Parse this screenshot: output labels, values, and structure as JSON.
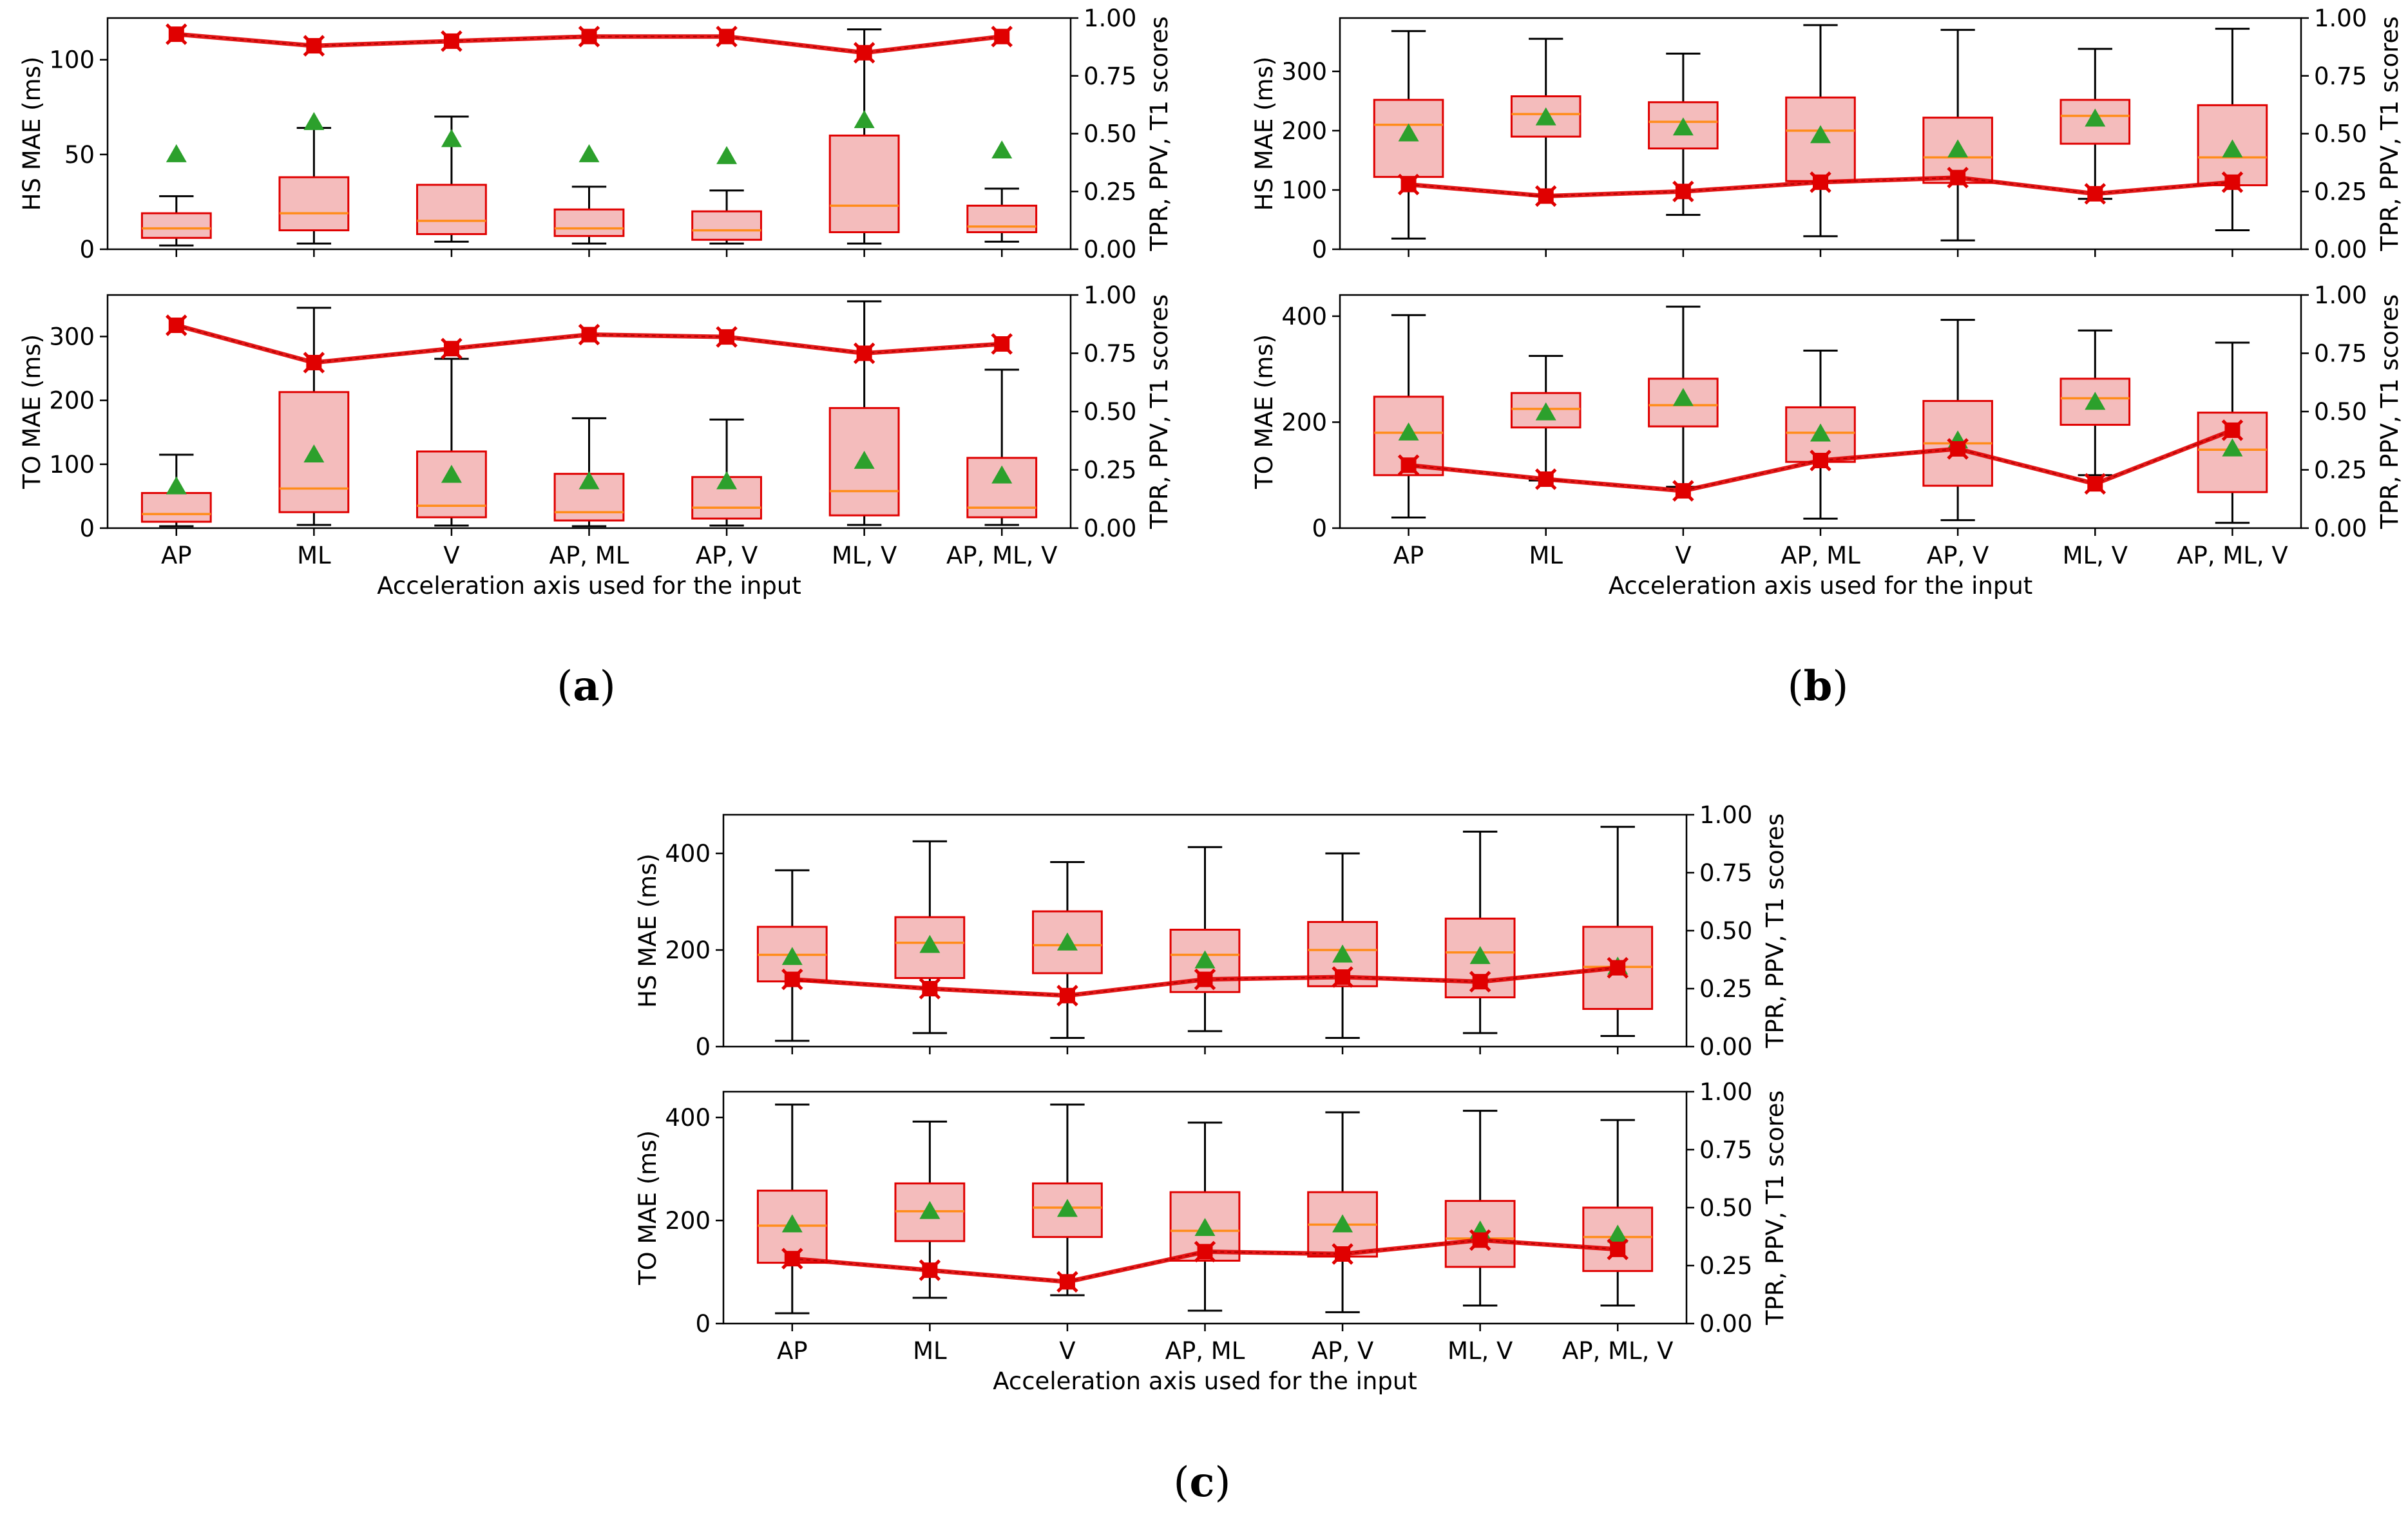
{
  "figure": {
    "panels": [
      {
        "id": "a",
        "label_open": "(",
        "label_letter": "a",
        "label_close": ")"
      },
      {
        "id": "b",
        "label_open": "(",
        "label_letter": "b",
        "label_close": ")"
      },
      {
        "id": "c",
        "label_open": "(",
        "label_letter": "c",
        "label_close": ")"
      }
    ]
  },
  "colors": {
    "box_fill": "#f4bcbc",
    "box_edge": "#e00000",
    "median": "#ff8c1a",
    "mean": "#2ca02c",
    "whisker": "#000000",
    "score_line": "#e00000"
  },
  "chart_data": [
    {
      "panel": "a",
      "row": "top",
      "type": "box",
      "categories": [
        "AP",
        "ML",
        "V",
        "AP, ML",
        "AP, V",
        "ML, V",
        "AP, ML, V"
      ],
      "ylabel": "HS MAE (ms)",
      "ylabel_right": "TPR, PPV, T1 scores",
      "xlabel": "",
      "ylim": [
        0,
        122
      ],
      "yticks": [
        0,
        50,
        100
      ],
      "y2lim": [
        0,
        1
      ],
      "y2ticks": [
        "0.00",
        "0.25",
        "0.50",
        "0.75",
        "1.00"
      ],
      "boxes": [
        {
          "whislo": 2,
          "q1": 6,
          "med": 11,
          "q3": 19,
          "whishi": 28,
          "mean": 50
        },
        {
          "whislo": 3,
          "q1": 10,
          "med": 19,
          "q3": 38,
          "whishi": 64,
          "mean": 67
        },
        {
          "whislo": 4,
          "q1": 8,
          "med": 15,
          "q3": 34,
          "whishi": 70,
          "mean": 58
        },
        {
          "whislo": 3,
          "q1": 7,
          "med": 11,
          "q3": 21,
          "whishi": 33,
          "mean": 50
        },
        {
          "whislo": 3,
          "q1": 5,
          "med": 10,
          "q3": 20,
          "whishi": 31,
          "mean": 49
        },
        {
          "whislo": 3,
          "q1": 9,
          "med": 23,
          "q3": 60,
          "whishi": 116,
          "mean": 68
        },
        {
          "whislo": 4,
          "q1": 9,
          "med": 12,
          "q3": 23,
          "whishi": 32,
          "mean": 52
        }
      ],
      "score": [
        0.93,
        0.88,
        0.9,
        0.92,
        0.92,
        0.85,
        0.92
      ]
    },
    {
      "panel": "a",
      "row": "bottom",
      "type": "box",
      "categories": [
        "AP",
        "ML",
        "V",
        "AP, ML",
        "AP, V",
        "ML, V",
        "AP, ML, V"
      ],
      "ylabel": "TO MAE (ms)",
      "ylabel_right": "TPR, PPV, T1 scores",
      "xlabel": "Acceleration axis used for the input",
      "ylim": [
        0,
        365
      ],
      "yticks": [
        0,
        100,
        200,
        300
      ],
      "y2lim": [
        0,
        1
      ],
      "y2ticks": [
        "0.00",
        "0.25",
        "0.50",
        "0.75",
        "1.00"
      ],
      "boxes": [
        {
          "whislo": 3,
          "q1": 10,
          "med": 22,
          "q3": 55,
          "whishi": 115,
          "mean": 65
        },
        {
          "whislo": 5,
          "q1": 25,
          "med": 62,
          "q3": 213,
          "whishi": 345,
          "mean": 115
        },
        {
          "whislo": 4,
          "q1": 17,
          "med": 35,
          "q3": 120,
          "whishi": 265,
          "mean": 83
        },
        {
          "whislo": 3,
          "q1": 12,
          "med": 25,
          "q3": 85,
          "whishi": 172,
          "mean": 73
        },
        {
          "whislo": 4,
          "q1": 15,
          "med": 32,
          "q3": 80,
          "whishi": 170,
          "mean": 73
        },
        {
          "whislo": 5,
          "q1": 20,
          "med": 58,
          "q3": 188,
          "whishi": 355,
          "mean": 105
        },
        {
          "whislo": 5,
          "q1": 17,
          "med": 32,
          "q3": 110,
          "whishi": 248,
          "mean": 82
        }
      ],
      "score": [
        0.87,
        0.71,
        0.77,
        0.83,
        0.82,
        0.75,
        0.79
      ]
    },
    {
      "panel": "b",
      "row": "top",
      "type": "box",
      "categories": [
        "AP",
        "ML",
        "V",
        "AP, ML",
        "AP, V",
        "ML, V",
        "AP, ML, V"
      ],
      "ylabel": "HS MAE (ms)",
      "ylabel_right": "TPR, PPV, T1 scores",
      "xlabel": "",
      "ylim": [
        0,
        390
      ],
      "yticks": [
        0,
        100,
        200,
        300
      ],
      "y2lim": [
        0,
        1
      ],
      "y2ticks": [
        "0.00",
        "0.25",
        "0.50",
        "0.75",
        "1.00"
      ],
      "boxes": [
        {
          "whislo": 18,
          "q1": 122,
          "med": 210,
          "q3": 252,
          "whishi": 368,
          "mean": 195
        },
        {
          "whislo": 90,
          "q1": 190,
          "med": 228,
          "q3": 258,
          "whishi": 355,
          "mean": 222
        },
        {
          "whislo": 58,
          "q1": 170,
          "med": 215,
          "q3": 248,
          "whishi": 330,
          "mean": 205
        },
        {
          "whislo": 22,
          "q1": 115,
          "med": 200,
          "q3": 256,
          "whishi": 378,
          "mean": 192
        },
        {
          "whislo": 15,
          "q1": 112,
          "med": 155,
          "q3": 222,
          "whishi": 370,
          "mean": 168
        },
        {
          "whislo": 85,
          "q1": 178,
          "med": 225,
          "q3": 252,
          "whishi": 338,
          "mean": 220
        },
        {
          "whislo": 32,
          "q1": 108,
          "med": 155,
          "q3": 243,
          "whishi": 372,
          "mean": 168
        }
      ],
      "score": [
        0.28,
        0.23,
        0.25,
        0.29,
        0.31,
        0.24,
        0.29
      ]
    },
    {
      "panel": "b",
      "row": "bottom",
      "type": "box",
      "categories": [
        "AP",
        "ML",
        "V",
        "AP, ML",
        "AP, V",
        "ML, V",
        "AP, ML, V"
      ],
      "ylabel": "TO MAE (ms)",
      "ylabel_right": "TPR, PPV, T1 scores",
      "xlabel": "Acceleration axis used for the input",
      "ylim": [
        0,
        440
      ],
      "yticks": [
        0,
        200,
        400
      ],
      "y2lim": [
        0,
        1
      ],
      "y2ticks": [
        "0.00",
        "0.25",
        "0.50",
        "0.75",
        "1.00"
      ],
      "boxes": [
        {
          "whislo": 20,
          "q1": 100,
          "med": 180,
          "q3": 248,
          "whishi": 402,
          "mean": 180
        },
        {
          "whislo": 90,
          "q1": 190,
          "med": 225,
          "q3": 255,
          "whishi": 325,
          "mean": 218
        },
        {
          "whislo": 78,
          "q1": 192,
          "med": 232,
          "q3": 282,
          "whishi": 418,
          "mean": 245
        },
        {
          "whislo": 18,
          "q1": 125,
          "med": 180,
          "q3": 228,
          "whishi": 335,
          "mean": 178
        },
        {
          "whislo": 15,
          "q1": 80,
          "med": 160,
          "q3": 240,
          "whishi": 393,
          "mean": 165
        },
        {
          "whislo": 100,
          "q1": 195,
          "med": 245,
          "q3": 282,
          "whishi": 373,
          "mean": 238
        },
        {
          "whislo": 10,
          "q1": 68,
          "med": 148,
          "q3": 218,
          "whishi": 350,
          "mean": 150
        }
      ],
      "score": [
        0.27,
        0.21,
        0.16,
        0.29,
        0.34,
        0.19,
        0.42
      ]
    },
    {
      "panel": "c",
      "row": "top",
      "type": "box",
      "categories": [
        "AP",
        "ML",
        "V",
        "AP, ML",
        "AP, V",
        "ML, V",
        "AP, ML, V"
      ],
      "ylabel": "HS MAE (ms)",
      "ylabel_right": "TPR, PPV, T1 scores",
      "xlabel": "",
      "ylim": [
        0,
        480
      ],
      "yticks": [
        0,
        200,
        400
      ],
      "y2lim": [
        0,
        1
      ],
      "y2ticks": [
        "0.00",
        "0.25",
        "0.50",
        "0.75",
        "1.00"
      ],
      "boxes": [
        {
          "whislo": 12,
          "q1": 135,
          "med": 190,
          "q3": 248,
          "whishi": 365,
          "mean": 185
        },
        {
          "whislo": 28,
          "q1": 142,
          "med": 215,
          "q3": 268,
          "whishi": 425,
          "mean": 210
        },
        {
          "whislo": 18,
          "q1": 152,
          "med": 210,
          "q3": 280,
          "whishi": 382,
          "mean": 215
        },
        {
          "whislo": 32,
          "q1": 113,
          "med": 190,
          "q3": 242,
          "whishi": 413,
          "mean": 178
        },
        {
          "whislo": 18,
          "q1": 125,
          "med": 200,
          "q3": 258,
          "whishi": 400,
          "mean": 190
        },
        {
          "whislo": 28,
          "q1": 102,
          "med": 195,
          "q3": 265,
          "whishi": 445,
          "mean": 187
        },
        {
          "whislo": 22,
          "q1": 78,
          "med": 165,
          "q3": 248,
          "whishi": 455,
          "mean": 165
        }
      ],
      "score": [
        0.29,
        0.25,
        0.22,
        0.29,
        0.3,
        0.28,
        0.34
      ]
    },
    {
      "panel": "c",
      "row": "bottom",
      "type": "box",
      "categories": [
        "AP",
        "ML",
        "V",
        "AP, ML",
        "AP, V",
        "ML, V",
        "AP, ML, V"
      ],
      "ylabel": "TO MAE (ms)",
      "ylabel_right": "TPR, PPV, T1 scores",
      "xlabel": "Acceleration axis used for the input",
      "ylim": [
        0,
        450
      ],
      "yticks": [
        0,
        200,
        400
      ],
      "y2lim": [
        0,
        1
      ],
      "y2ticks": [
        "0.00",
        "0.25",
        "0.50",
        "0.75",
        "1.00"
      ],
      "boxes": [
        {
          "whislo": 20,
          "q1": 118,
          "med": 190,
          "q3": 258,
          "whishi": 425,
          "mean": 192
        },
        {
          "whislo": 50,
          "q1": 160,
          "med": 218,
          "q3": 272,
          "whishi": 392,
          "mean": 218
        },
        {
          "whislo": 55,
          "q1": 168,
          "med": 225,
          "q3": 272,
          "whishi": 425,
          "mean": 222
        },
        {
          "whislo": 25,
          "q1": 122,
          "med": 180,
          "q3": 255,
          "whishi": 390,
          "mean": 185
        },
        {
          "whislo": 22,
          "q1": 130,
          "med": 192,
          "q3": 255,
          "whishi": 410,
          "mean": 192
        },
        {
          "whislo": 35,
          "q1": 110,
          "med": 165,
          "q3": 238,
          "whishi": 413,
          "mean": 180
        },
        {
          "whislo": 35,
          "q1": 102,
          "med": 168,
          "q3": 225,
          "whishi": 395,
          "mean": 172
        }
      ],
      "score": [
        0.28,
        0.23,
        0.18,
        0.31,
        0.3,
        0.36,
        0.32
      ]
    }
  ]
}
